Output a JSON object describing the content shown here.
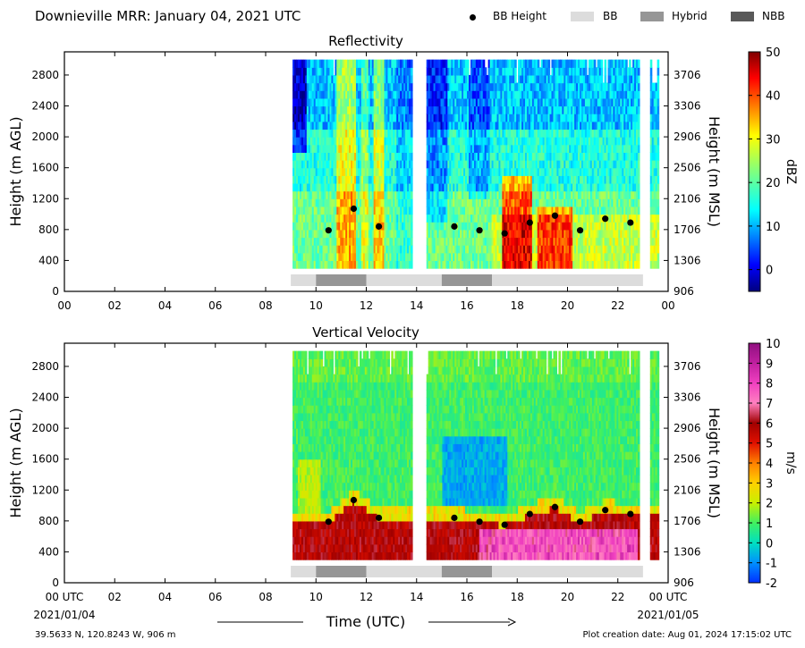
{
  "header": {
    "title": "Downieville MRR:  January 04, 2021 UTC",
    "legend": [
      {
        "label": "BB Height",
        "kind": "dot",
        "color": "#000000"
      },
      {
        "label": "BB",
        "kind": "box",
        "color": "#dcdcdc"
      },
      {
        "label": "Hybrid",
        "kind": "box",
        "color": "#969696"
      },
      {
        "label": "NBB",
        "kind": "box",
        "color": "#595959"
      }
    ]
  },
  "footer": {
    "location": "39.5633 N, 120.8243 W, 906 m",
    "created": "Plot creation date: Aug 01, 2024 17:15:02 UTC",
    "xlabel": "Time (UTC)",
    "start_date": "2021/01/04",
    "end_date": "2021/01/05"
  },
  "chart_data": [
    {
      "type": "heatmap",
      "title": "Reflectivity",
      "xlabel": "Time (UTC)",
      "ylabel": "Height (m AGL)",
      "ylabel_right": "Height (m MSL)",
      "xlim": [
        0,
        24
      ],
      "ylim": [
        0,
        3100
      ],
      "x_ticks": [
        "00",
        "02",
        "04",
        "06",
        "08",
        "10",
        "12",
        "14",
        "16",
        "18",
        "20",
        "22",
        "00"
      ],
      "y_ticks": [
        0,
        400,
        800,
        1200,
        1600,
        2000,
        2400,
        2800
      ],
      "y_ticks_right": [
        906,
        1306,
        1706,
        2106,
        2506,
        2906,
        3306,
        3706
      ],
      "colorbar": {
        "label": "dBZ",
        "min": -5,
        "max": 50,
        "ticks": [
          0,
          10,
          20,
          30,
          40,
          50
        ],
        "palette": "jet"
      },
      "bb_height": [
        {
          "t": 10.5,
          "h": 790
        },
        {
          "t": 11.5,
          "h": 1070
        },
        {
          "t": 12.5,
          "h": 840
        },
        {
          "t": 15.5,
          "h": 840
        },
        {
          "t": 16.5,
          "h": 790
        },
        {
          "t": 17.5,
          "h": 750
        },
        {
          "t": 18.5,
          "h": 890
        },
        {
          "t": 19.5,
          "h": 980
        },
        {
          "t": 20.5,
          "h": 790
        },
        {
          "t": 21.5,
          "h": 940
        },
        {
          "t": 22.5,
          "h": 890
        }
      ],
      "bb_type_bar": [
        {
          "start": 9.0,
          "end": 10.0,
          "type": "BB"
        },
        {
          "start": 10.0,
          "end": 12.0,
          "type": "Hybrid"
        },
        {
          "start": 12.0,
          "end": 15.0,
          "type": "BB"
        },
        {
          "start": 15.0,
          "end": 17.0,
          "type": "Hybrid"
        },
        {
          "start": 17.0,
          "end": 23.0,
          "type": "BB"
        }
      ]
    },
    {
      "type": "heatmap",
      "title": "Vertical Velocity",
      "xlabel": "Time (UTC)",
      "ylabel": "Height (m AGL)",
      "ylabel_right": "Height (m MSL)",
      "xlim": [
        0,
        24
      ],
      "ylim": [
        0,
        3100
      ],
      "x_ticks": [
        "00 UTC",
        "02",
        "04",
        "06",
        "08",
        "10",
        "12",
        "14",
        "16",
        "18",
        "20",
        "22",
        "00 UTC"
      ],
      "y_ticks": [
        0,
        400,
        800,
        1200,
        1600,
        2000,
        2400,
        2800
      ],
      "y_ticks_right": [
        906,
        1306,
        1706,
        2106,
        2506,
        2906,
        3306,
        3706
      ],
      "colorbar": {
        "label": "m/s",
        "min": -2,
        "max": 10,
        "ticks": [
          -2,
          -1,
          0,
          1,
          2,
          3,
          4,
          5,
          6,
          7,
          8,
          9,
          10
        ],
        "palette": "velocity"
      },
      "bb_height": [
        {
          "t": 10.5,
          "h": 790
        },
        {
          "t": 11.5,
          "h": 1070
        },
        {
          "t": 12.5,
          "h": 840
        },
        {
          "t": 15.5,
          "h": 840
        },
        {
          "t": 16.5,
          "h": 790
        },
        {
          "t": 17.5,
          "h": 750
        },
        {
          "t": 18.5,
          "h": 890
        },
        {
          "t": 19.5,
          "h": 980
        },
        {
          "t": 20.5,
          "h": 790
        },
        {
          "t": 21.5,
          "h": 940
        },
        {
          "t": 22.5,
          "h": 890
        }
      ],
      "bb_type_bar": [
        {
          "start": 9.0,
          "end": 10.0,
          "type": "BB"
        },
        {
          "start": 10.0,
          "end": 12.0,
          "type": "Hybrid"
        },
        {
          "start": 12.0,
          "end": 15.0,
          "type": "BB"
        },
        {
          "start": 15.0,
          "end": 17.0,
          "type": "Hybrid"
        },
        {
          "start": 17.0,
          "end": 23.0,
          "type": "BB"
        }
      ]
    }
  ],
  "data_segments": [
    {
      "start": 9.05,
      "end": 13.85
    },
    {
      "start": 14.4,
      "end": 22.85
    },
    {
      "start": 23.3,
      "end": 23.6
    }
  ]
}
